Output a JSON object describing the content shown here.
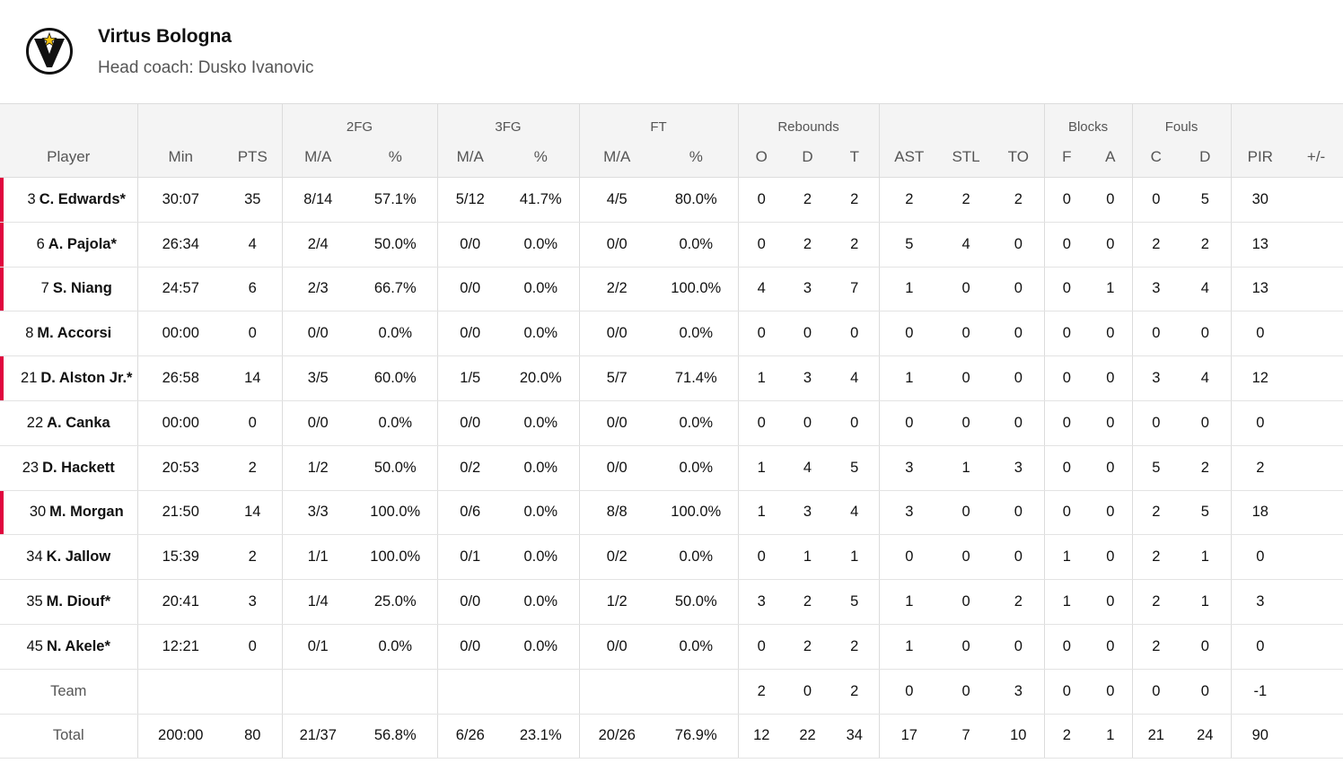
{
  "team": {
    "name": "Virtus Bologna",
    "coach_label": "Head coach:",
    "coach_name": "Dusko Ivanovic",
    "logo_icon": "virtus-v-star-logo",
    "accent_color": "#e0063e"
  },
  "headers": {
    "groups": {
      "fg2": "2FG",
      "fg3": "3FG",
      "ft": "FT",
      "rebounds": "Rebounds",
      "blocks": "Blocks",
      "fouls": "Fouls"
    },
    "columns": {
      "player": "Player",
      "min": "Min",
      "pts": "PTS",
      "fg2_ma": "M/A",
      "fg2_pct": "%",
      "fg3_ma": "M/A",
      "fg3_pct": "%",
      "ft_ma": "M/A",
      "ft_pct": "%",
      "reb_o": "O",
      "reb_d": "D",
      "reb_t": "T",
      "ast": "AST",
      "stl": "STL",
      "to": "TO",
      "blk_f": "F",
      "blk_a": "A",
      "foul_c": "C",
      "foul_d": "D",
      "pir": "PIR",
      "pm": "+/-"
    }
  },
  "players": [
    {
      "num": "3",
      "name": "C. Edwards*",
      "starter": true,
      "min": "30:07",
      "pts": "35",
      "fg2_ma": "8/14",
      "fg2_pct": "57.1%",
      "fg3_ma": "5/12",
      "fg3_pct": "41.7%",
      "ft_ma": "4/5",
      "ft_pct": "80.0%",
      "reb_o": "0",
      "reb_d": "2",
      "reb_t": "2",
      "ast": "2",
      "stl": "2",
      "to": "2",
      "blk_f": "0",
      "blk_a": "0",
      "foul_c": "0",
      "foul_d": "5",
      "pir": "30",
      "pm": ""
    },
    {
      "num": "6",
      "name": "A. Pajola*",
      "starter": true,
      "min": "26:34",
      "pts": "4",
      "fg2_ma": "2/4",
      "fg2_pct": "50.0%",
      "fg3_ma": "0/0",
      "fg3_pct": "0.0%",
      "ft_ma": "0/0",
      "ft_pct": "0.0%",
      "reb_o": "0",
      "reb_d": "2",
      "reb_t": "2",
      "ast": "5",
      "stl": "4",
      "to": "0",
      "blk_f": "0",
      "blk_a": "0",
      "foul_c": "2",
      "foul_d": "2",
      "pir": "13",
      "pm": ""
    },
    {
      "num": "7",
      "name": "S. Niang",
      "starter": true,
      "min": "24:57",
      "pts": "6",
      "fg2_ma": "2/3",
      "fg2_pct": "66.7%",
      "fg3_ma": "0/0",
      "fg3_pct": "0.0%",
      "ft_ma": "2/2",
      "ft_pct": "100.0%",
      "reb_o": "4",
      "reb_d": "3",
      "reb_t": "7",
      "ast": "1",
      "stl": "0",
      "to": "0",
      "blk_f": "0",
      "blk_a": "1",
      "foul_c": "3",
      "foul_d": "4",
      "pir": "13",
      "pm": ""
    },
    {
      "num": "8",
      "name": "M. Accorsi",
      "starter": false,
      "min": "00:00",
      "pts": "0",
      "fg2_ma": "0/0",
      "fg2_pct": "0.0%",
      "fg3_ma": "0/0",
      "fg3_pct": "0.0%",
      "ft_ma": "0/0",
      "ft_pct": "0.0%",
      "reb_o": "0",
      "reb_d": "0",
      "reb_t": "0",
      "ast": "0",
      "stl": "0",
      "to": "0",
      "blk_f": "0",
      "blk_a": "0",
      "foul_c": "0",
      "foul_d": "0",
      "pir": "0",
      "pm": ""
    },
    {
      "num": "21",
      "name": "D. Alston Jr.*",
      "starter": true,
      "min": "26:58",
      "pts": "14",
      "fg2_ma": "3/5",
      "fg2_pct": "60.0%",
      "fg3_ma": "1/5",
      "fg3_pct": "20.0%",
      "ft_ma": "5/7",
      "ft_pct": "71.4%",
      "reb_o": "1",
      "reb_d": "3",
      "reb_t": "4",
      "ast": "1",
      "stl": "0",
      "to": "0",
      "blk_f": "0",
      "blk_a": "0",
      "foul_c": "3",
      "foul_d": "4",
      "pir": "12",
      "pm": ""
    },
    {
      "num": "22",
      "name": "A. Canka",
      "starter": false,
      "min": "00:00",
      "pts": "0",
      "fg2_ma": "0/0",
      "fg2_pct": "0.0%",
      "fg3_ma": "0/0",
      "fg3_pct": "0.0%",
      "ft_ma": "0/0",
      "ft_pct": "0.0%",
      "reb_o": "0",
      "reb_d": "0",
      "reb_t": "0",
      "ast": "0",
      "stl": "0",
      "to": "0",
      "blk_f": "0",
      "blk_a": "0",
      "foul_c": "0",
      "foul_d": "0",
      "pir": "0",
      "pm": ""
    },
    {
      "num": "23",
      "name": "D. Hackett",
      "starter": false,
      "min": "20:53",
      "pts": "2",
      "fg2_ma": "1/2",
      "fg2_pct": "50.0%",
      "fg3_ma": "0/2",
      "fg3_pct": "0.0%",
      "ft_ma": "0/0",
      "ft_pct": "0.0%",
      "reb_o": "1",
      "reb_d": "4",
      "reb_t": "5",
      "ast": "3",
      "stl": "1",
      "to": "3",
      "blk_f": "0",
      "blk_a": "0",
      "foul_c": "5",
      "foul_d": "2",
      "pir": "2",
      "pm": ""
    },
    {
      "num": "30",
      "name": "M. Morgan",
      "starter": true,
      "min": "21:50",
      "pts": "14",
      "fg2_ma": "3/3",
      "fg2_pct": "100.0%",
      "fg3_ma": "0/6",
      "fg3_pct": "0.0%",
      "ft_ma": "8/8",
      "ft_pct": "100.0%",
      "reb_o": "1",
      "reb_d": "3",
      "reb_t": "4",
      "ast": "3",
      "stl": "0",
      "to": "0",
      "blk_f": "0",
      "blk_a": "0",
      "foul_c": "2",
      "foul_d": "5",
      "pir": "18",
      "pm": ""
    },
    {
      "num": "34",
      "name": "K. Jallow",
      "starter": false,
      "min": "15:39",
      "pts": "2",
      "fg2_ma": "1/1",
      "fg2_pct": "100.0%",
      "fg3_ma": "0/1",
      "fg3_pct": "0.0%",
      "ft_ma": "0/2",
      "ft_pct": "0.0%",
      "reb_o": "0",
      "reb_d": "1",
      "reb_t": "1",
      "ast": "0",
      "stl": "0",
      "to": "0",
      "blk_f": "1",
      "blk_a": "0",
      "foul_c": "2",
      "foul_d": "1",
      "pir": "0",
      "pm": ""
    },
    {
      "num": "35",
      "name": "M. Diouf*",
      "starter": false,
      "min": "20:41",
      "pts": "3",
      "fg2_ma": "1/4",
      "fg2_pct": "25.0%",
      "fg3_ma": "0/0",
      "fg3_pct": "0.0%",
      "ft_ma": "1/2",
      "ft_pct": "50.0%",
      "reb_o": "3",
      "reb_d": "2",
      "reb_t": "5",
      "ast": "1",
      "stl": "0",
      "to": "2",
      "blk_f": "1",
      "blk_a": "0",
      "foul_c": "2",
      "foul_d": "1",
      "pir": "3",
      "pm": ""
    },
    {
      "num": "45",
      "name": "N. Akele*",
      "starter": false,
      "min": "12:21",
      "pts": "0",
      "fg2_ma": "0/1",
      "fg2_pct": "0.0%",
      "fg3_ma": "0/0",
      "fg3_pct": "0.0%",
      "ft_ma": "0/0",
      "ft_pct": "0.0%",
      "reb_o": "0",
      "reb_d": "2",
      "reb_t": "2",
      "ast": "1",
      "stl": "0",
      "to": "0",
      "blk_f": "0",
      "blk_a": "0",
      "foul_c": "2",
      "foul_d": "0",
      "pir": "0",
      "pm": ""
    }
  ],
  "team_row": {
    "label": "Team",
    "min": "",
    "pts": "",
    "fg2_ma": "",
    "fg2_pct": "",
    "fg3_ma": "",
    "fg3_pct": "",
    "ft_ma": "",
    "ft_pct": "",
    "reb_o": "2",
    "reb_d": "0",
    "reb_t": "2",
    "ast": "0",
    "stl": "0",
    "to": "3",
    "blk_f": "0",
    "blk_a": "0",
    "foul_c": "0",
    "foul_d": "0",
    "pir": "-1",
    "pm": ""
  },
  "total_row": {
    "label": "Total",
    "min": "200:00",
    "pts": "80",
    "fg2_ma": "21/37",
    "fg2_pct": "56.8%",
    "fg3_ma": "6/26",
    "fg3_pct": "23.1%",
    "ft_ma": "20/26",
    "ft_pct": "76.9%",
    "reb_o": "12",
    "reb_d": "22",
    "reb_t": "34",
    "ast": "17",
    "stl": "7",
    "to": "10",
    "blk_f": "2",
    "blk_a": "1",
    "foul_c": "21",
    "foul_d": "24",
    "pir": "90",
    "pm": ""
  }
}
